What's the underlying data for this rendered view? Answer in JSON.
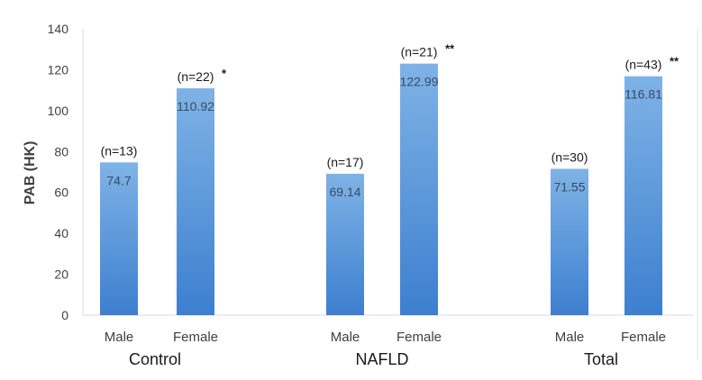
{
  "chart_data": {
    "type": "bar",
    "ylabel": "PAB (HK)",
    "ylim": [
      0,
      140
    ],
    "yticks": [
      0,
      20,
      40,
      60,
      80,
      100,
      120,
      140
    ],
    "grid": false,
    "groups": [
      "Control",
      "NAFLD",
      "Total"
    ],
    "bars": [
      {
        "group": "Control",
        "category": "Male",
        "value": 74.7,
        "value_label": "74.7",
        "n_label": "(n=13)",
        "sig": ""
      },
      {
        "group": "Control",
        "category": "Female",
        "value": 110.92,
        "value_label": "110.92",
        "n_label": "(n=22)",
        "sig": "*"
      },
      {
        "group": "NAFLD",
        "category": "Male",
        "value": 69.14,
        "value_label": "69.14",
        "n_label": "(n=17)",
        "sig": ""
      },
      {
        "group": "NAFLD",
        "category": "Female",
        "value": 122.99,
        "value_label": "122.99",
        "n_label": "(n=21)",
        "sig": "**"
      },
      {
        "group": "Total",
        "category": "Male",
        "value": 71.55,
        "value_label": "71.55",
        "n_label": "(n=30)",
        "sig": ""
      },
      {
        "group": "Total",
        "category": "Female",
        "value": 116.81,
        "value_label": "116.81",
        "n_label": "(n=43)",
        "sig": "**"
      }
    ],
    "colors": {
      "bar_top": "#7fb3e6",
      "bar_bottom": "#3d7fcf",
      "text": "#404040",
      "axis": "#d0d0d0"
    }
  }
}
